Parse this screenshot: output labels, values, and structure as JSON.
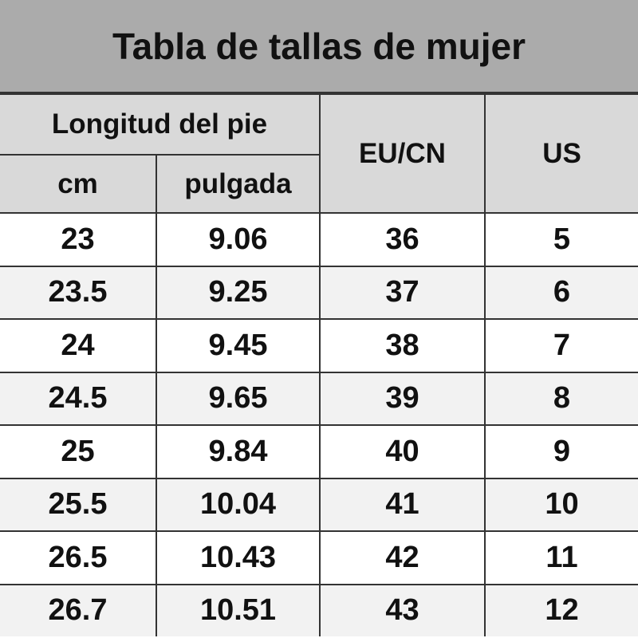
{
  "title": "Tabla de tallas de mujer",
  "headers": {
    "foot_length": "Longitud del pie",
    "cm": "cm",
    "inch": "pulgada",
    "eu_cn": "EU/CN",
    "us": "US"
  },
  "rows": [
    {
      "cm": "23",
      "inch": "9.06",
      "eu": "36",
      "us": "5"
    },
    {
      "cm": "23.5",
      "inch": "9.25",
      "eu": "37",
      "us": "6"
    },
    {
      "cm": "24",
      "inch": "9.45",
      "eu": "38",
      "us": "7"
    },
    {
      "cm": "24.5",
      "inch": "9.65",
      "eu": "39",
      "us": "8"
    },
    {
      "cm": "25",
      "inch": "9.84",
      "eu": "40",
      "us": "9"
    },
    {
      "cm": "25.5",
      "inch": "10.04",
      "eu": "41",
      "us": "10"
    },
    {
      "cm": "26.5",
      "inch": "10.43",
      "eu": "42",
      "us": "11"
    },
    {
      "cm": "26.7",
      "inch": "10.51",
      "eu": "43",
      "us": "12"
    }
  ],
  "colors": {
    "title_bg": "#ababab",
    "header_bg": "#d9d9d9",
    "alt_row_bg": "#f2f2f2",
    "border": "#333333"
  }
}
